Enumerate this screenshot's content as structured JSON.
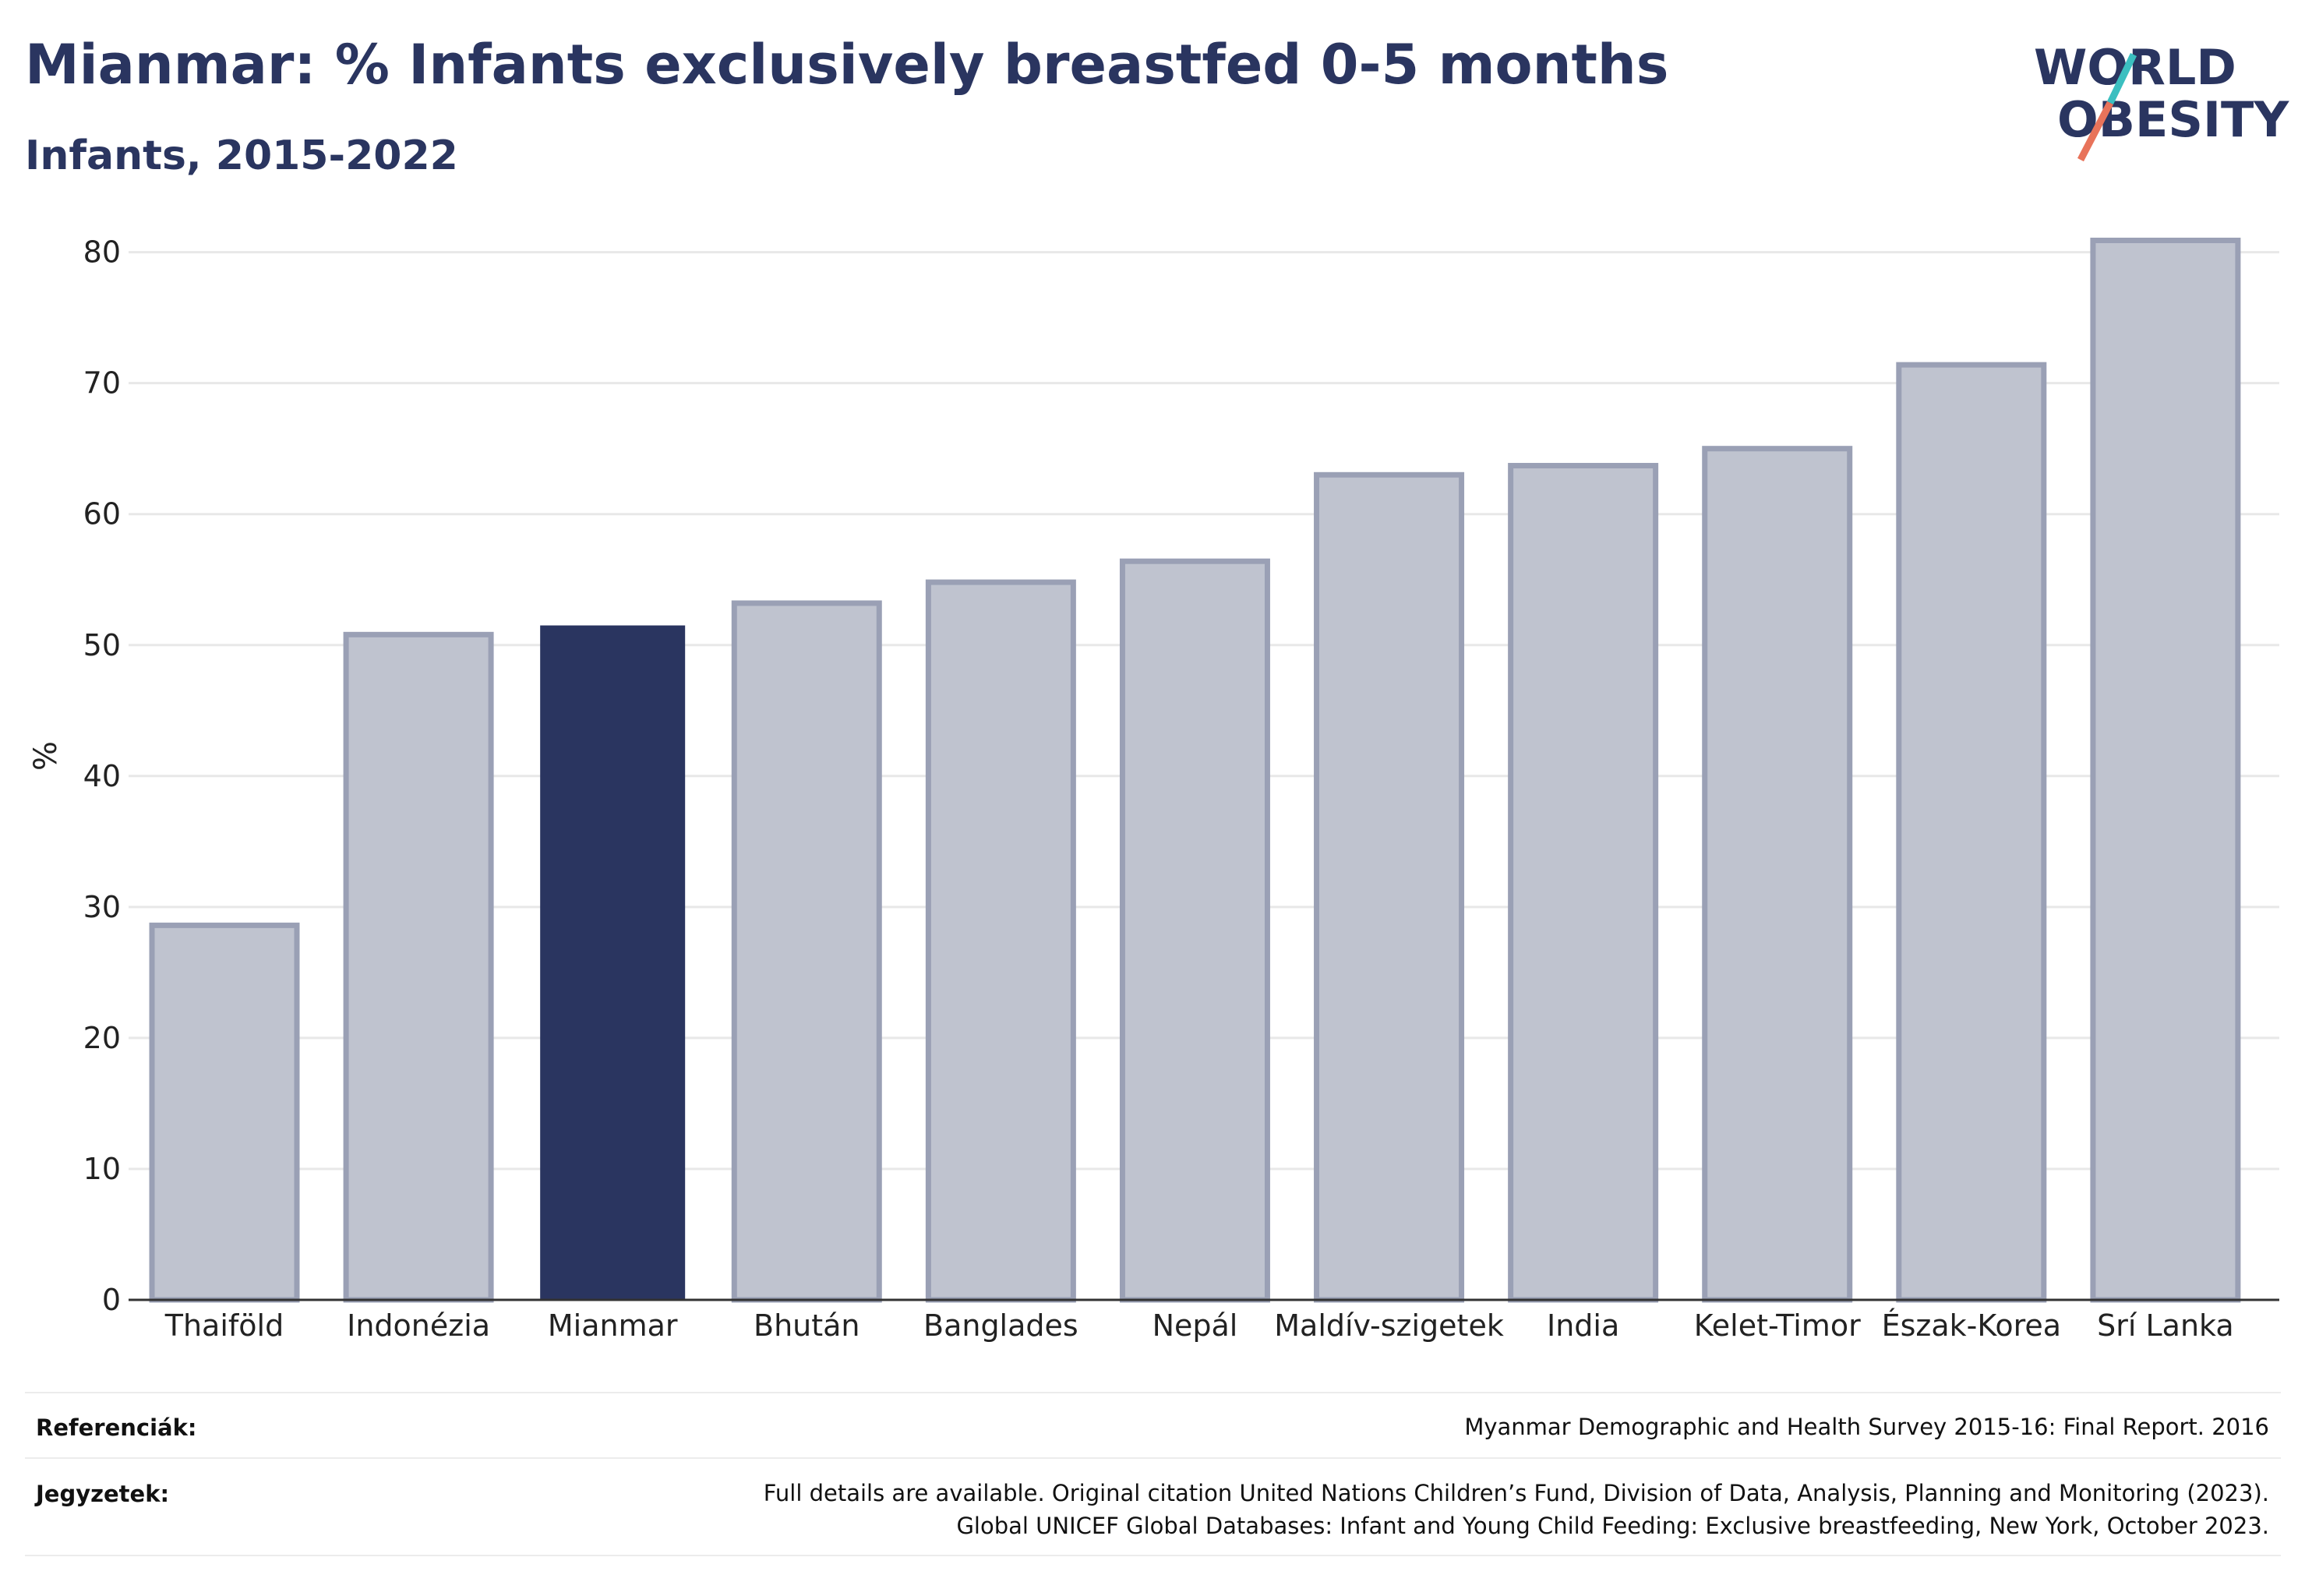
{
  "header": {
    "title": "Mianmar: % Infants exclusively breastfed 0-5 months",
    "subtitle": "Infants, 2015-2022"
  },
  "logo": {
    "line1": "WORLD",
    "line2": "OBESITY",
    "colors": {
      "text": "#2a3560",
      "slash_teal": "#3bbfc0",
      "slash_red": "#e8735a"
    }
  },
  "colors": {
    "highlight": "#2a3560",
    "other_fill": "#bfc3cf",
    "other_stroke": "#9aa0b5",
    "grid": "#e8e8e8",
    "axis": "#333333"
  },
  "chart_data": {
    "type": "bar",
    "categories": [
      "Thaiföld",
      "Indonézia",
      "Mianmar",
      "Bhután",
      "Banglades",
      "Nepál",
      "Maldív-szigetek",
      "India",
      "Kelet-Timor",
      "Észak-Korea",
      "Srí Lanka"
    ],
    "values": [
      28.6,
      50.8,
      51.5,
      53.2,
      54.8,
      56.4,
      63.0,
      63.7,
      65.0,
      71.4,
      80.9
    ],
    "highlight": "Mianmar",
    "title": "Mianmar: % Infants exclusively breastfed 0-5 months",
    "subtitle": "Infants, 2015-2022",
    "xlabel": "",
    "ylabel": "%",
    "ylim": [
      0,
      82
    ],
    "yticks": [
      0,
      10,
      20,
      30,
      40,
      50,
      60,
      70,
      80
    ],
    "grid": true,
    "legend": "none"
  },
  "footer": {
    "references_label": "Referenciák:",
    "references_text": "Myanmar Demographic and Health Survey 2015-16: Final Report. 2016",
    "notes_label": "Jegyzetek:",
    "notes_line1": "Full details are available. Original citation United Nations Children’s Fund, Division of Data, Analysis, Planning and Monitoring (2023).",
    "notes_line2": "Global UNICEF Global Databases: Infant and Young Child Feeding: Exclusive breastfeeding, New York, October 2023."
  }
}
